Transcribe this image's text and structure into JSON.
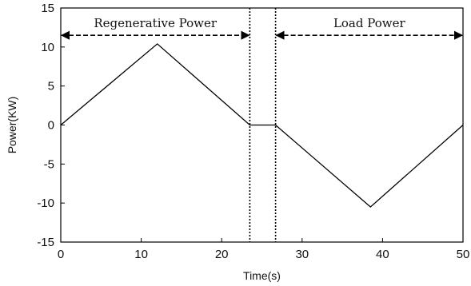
{
  "chart_data": {
    "type": "line",
    "title": "",
    "xlabel": "Time(s)",
    "ylabel": "Power(KW)",
    "xlim": [
      0,
      50
    ],
    "ylim": [
      -15,
      15
    ],
    "xticks": [
      "0",
      "10",
      "20",
      "30",
      "40",
      "50"
    ],
    "yticks": [
      "-15",
      "-10",
      "-5",
      "0",
      "5",
      "10",
      "15"
    ],
    "grid": false,
    "series": [
      {
        "x": [
          0,
          12,
          23.5,
          26.7,
          38.5,
          50
        ],
        "y": [
          0,
          10.4,
          0,
          0,
          -10.5,
          0
        ]
      }
    ],
    "vertical_lines": [
      23.5,
      26.7
    ],
    "annotations": [
      {
        "text": "Regenerative Power",
        "x_start": 0,
        "x_end": 23.5,
        "y": 11.5
      },
      {
        "text": "Load Power",
        "x_start": 26.7,
        "x_end": 50,
        "y": 11.5
      }
    ]
  }
}
